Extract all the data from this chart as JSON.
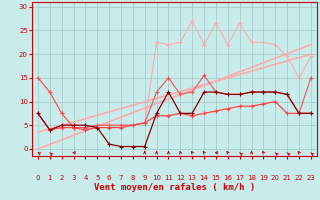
{
  "bg_color": "#c8ecec",
  "grid_color": "#a0c8c8",
  "line_color_light": "#ffaaaa",
  "line_color_medium": "#ff4444",
  "line_color_dark": "#cc0000",
  "line_color_darkest": "#880000",
  "xlabel": "Vent moyen/en rafales ( km/h )",
  "ylabel_ticks": [
    0,
    5,
    10,
    15,
    20,
    25,
    30
  ],
  "xticks": [
    0,
    1,
    2,
    3,
    4,
    5,
    6,
    7,
    8,
    9,
    10,
    11,
    12,
    13,
    14,
    15,
    16,
    17,
    18,
    19,
    20,
    21,
    22,
    23
  ],
  "xmin": -0.5,
  "xmax": 23.5,
  "ymin": -1.5,
  "ymax": 31,
  "reg_line1": [
    0.0,
    22.0
  ],
  "reg_line2": [
    3.5,
    20.0
  ],
  "lp_y": [
    15,
    12,
    7.5,
    4.5,
    4.5,
    5,
    5,
    5,
    5,
    5.5,
    22.5,
    22,
    22.5,
    27,
    22,
    26.5,
    22,
    26.5,
    22.5,
    22.5,
    22,
    19.5,
    15,
    19.5
  ],
  "lm_y": [
    7.5,
    4,
    4.5,
    4.5,
    4,
    4.5,
    4.5,
    4.5,
    5,
    5.5,
    7,
    7,
    7.5,
    7,
    7.5,
    8,
    8.5,
    9,
    9,
    9.5,
    10,
    7.5,
    7.5,
    7.5
  ],
  "ld_y": [
    7.5,
    4,
    5,
    5,
    5,
    4.5,
    1,
    0.5,
    0.5,
    0.5,
    7.5,
    12,
    7.5,
    7.5,
    12,
    12,
    11.5,
    11.5,
    12,
    12,
    12,
    11.5,
    7.5,
    7.5
  ],
  "lm2_y": [
    15,
    12,
    7.5,
    4.5,
    4.5,
    5,
    5,
    5,
    5,
    5.5,
    12,
    15,
    11.5,
    12,
    15.5,
    12,
    11.5,
    11.5,
    12,
    12,
    12,
    11.5,
    7.5,
    15
  ],
  "arrows_x": [
    0,
    1,
    3,
    9,
    10,
    11,
    12,
    13,
    14,
    15,
    16,
    17,
    18,
    19,
    20,
    21,
    22,
    23
  ],
  "arrow_angles_deg": [
    225,
    210,
    270,
    180,
    180,
    180,
    190,
    200,
    200,
    270,
    200,
    210,
    180,
    200,
    210,
    210,
    200,
    210
  ]
}
